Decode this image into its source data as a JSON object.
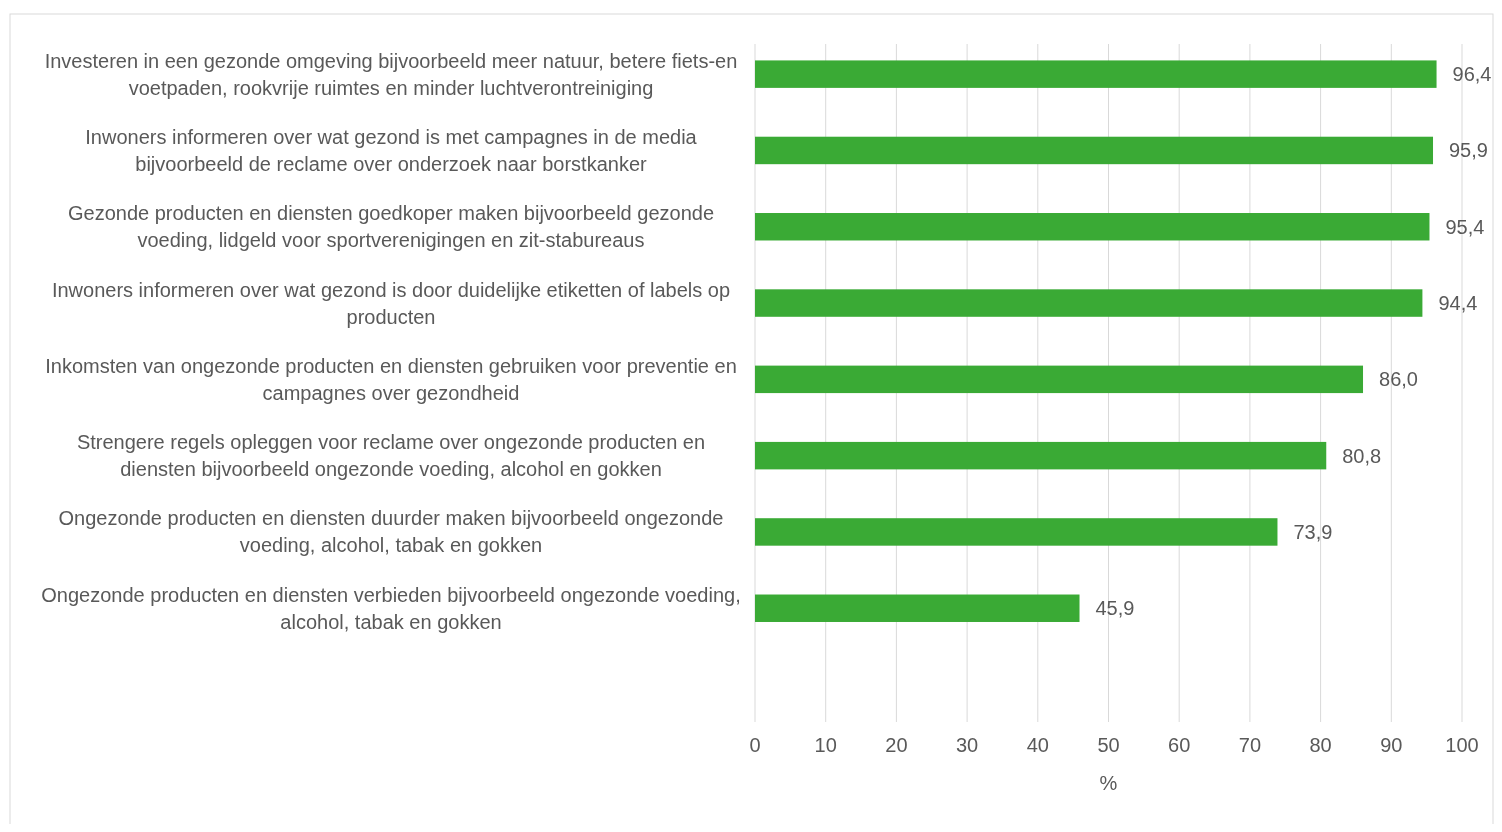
{
  "chart_data": {
    "type": "bar",
    "orientation": "horizontal",
    "xlabel": "%",
    "categories": [
      "Investeren in een gezonde omgeving bijvoorbeeld meer natuur, betere fiets-en voetpaden, rookvrije ruimtes en minder luchtverontreiniging",
      "Inwoners informeren over wat gezond is met campagnes in de media bijvoorbeeld de reclame over onderzoek naar borstkanker",
      "Gezonde producten en diensten goedkoper maken bijvoorbeeld gezonde voeding, lidgeld voor sportverenigingen en zit-stabureaus",
      "Inwoners informeren over wat gezond is door duidelijke etiketten of labels op producten",
      "Inkomsten van ongezonde producten en diensten gebruiken voor preventie en campagnes over gezondheid",
      "Strengere regels opleggen voor reclame over ongezonde producten en diensten bijvoorbeeld ongezonde voeding, alcohol en gokken",
      "Ongezonde producten en diensten duurder maken bijvoorbeeld ongezonde voeding, alcohol, tabak en gokken",
      "Ongezonde producten en diensten verbieden bijvoorbeeld ongezonde voeding, alcohol, tabak en gokken"
    ],
    "values": [
      96.4,
      95.9,
      95.4,
      94.4,
      86.0,
      80.8,
      73.9,
      45.9
    ],
    "value_labels": [
      "96,4",
      "95,9",
      "95,4",
      "94,4",
      "86,0",
      "80,8",
      "73,9",
      "45,9"
    ],
    "color": "#3aaa35",
    "xlim": [
      0,
      100
    ],
    "xticks": [
      0,
      10,
      20,
      30,
      40,
      50,
      60,
      70,
      80,
      90,
      100
    ],
    "grid": "x"
  }
}
